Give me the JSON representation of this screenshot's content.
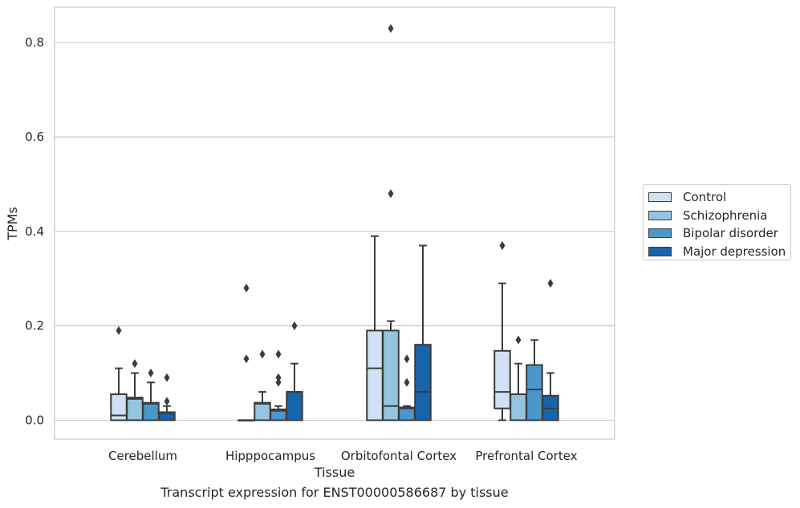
{
  "chart_data": {
    "type": "box",
    "xlabel": "Tissue",
    "ylabel": "TPMs",
    "ylim": [
      -0.04,
      0.875
    ],
    "yticks": [
      0.0,
      0.2,
      0.4,
      0.6,
      0.8
    ],
    "ytick_labels": [
      "0.0",
      "0.2",
      "0.4",
      "0.6",
      "0.8"
    ],
    "grid": "horizontal",
    "legend_position": "right",
    "categories": [
      "Cerebellum",
      "Hipppocampus",
      "Orbitofontal Cortex",
      "Prefrontal Cortex"
    ],
    "series": [
      {
        "name": "Control",
        "color": "#cfe1f2",
        "boxes": [
          {
            "q1": 0.0,
            "median": 0.01,
            "q3": 0.055,
            "whisker_low": 0.0,
            "whisker_high": 0.11,
            "outliers": [
              0.19
            ]
          },
          {
            "q1": 0.0,
            "median": 0.0,
            "q3": 0.0,
            "whisker_low": 0.0,
            "whisker_high": 0.0,
            "outliers": [
              0.13,
              0.28
            ]
          },
          {
            "q1": 0.0,
            "median": 0.11,
            "q3": 0.19,
            "whisker_low": 0.0,
            "whisker_high": 0.39,
            "outliers": []
          },
          {
            "q1": 0.025,
            "median": 0.06,
            "q3": 0.147,
            "whisker_low": 0.0,
            "whisker_high": 0.29,
            "outliers": [
              0.37
            ]
          }
        ]
      },
      {
        "name": "Schizophrenia",
        "color": "#94c4df",
        "boxes": [
          {
            "q1": 0.0,
            "median": 0.045,
            "q3": 0.048,
            "whisker_low": 0.0,
            "whisker_high": 0.1,
            "outliers": [
              0.12
            ]
          },
          {
            "q1": 0.0,
            "median": 0.035,
            "q3": 0.037,
            "whisker_low": 0.0,
            "whisker_high": 0.06,
            "outliers": [
              0.14
            ]
          },
          {
            "q1": 0.0,
            "median": 0.03,
            "q3": 0.19,
            "whisker_low": 0.0,
            "whisker_high": 0.21,
            "outliers": [
              0.48,
              0.83
            ]
          },
          {
            "q1": 0.0,
            "median": 0.055,
            "q3": 0.055,
            "whisker_low": 0.0,
            "whisker_high": 0.12,
            "outliers": [
              0.17
            ]
          }
        ]
      },
      {
        "name": "Bipolar disorder",
        "color": "#4a98c9",
        "boxes": [
          {
            "q1": 0.0,
            "median": 0.035,
            "q3": 0.037,
            "whisker_low": 0.0,
            "whisker_high": 0.08,
            "outliers": [
              0.1
            ]
          },
          {
            "q1": 0.0,
            "median": 0.02,
            "q3": 0.023,
            "whisker_low": 0.0,
            "whisker_high": 0.03,
            "outliers": [
              0.08,
              0.09,
              0.14
            ]
          },
          {
            "q1": 0.0,
            "median": 0.025,
            "q3": 0.027,
            "whisker_low": 0.0,
            "whisker_high": 0.03,
            "outliers": [
              0.08,
              0.13
            ]
          },
          {
            "q1": 0.0,
            "median": 0.065,
            "q3": 0.117,
            "whisker_low": 0.0,
            "whisker_high": 0.17,
            "outliers": []
          }
        ]
      },
      {
        "name": "Major depression",
        "color": "#1764ab",
        "boxes": [
          {
            "q1": 0.0,
            "median": 0.015,
            "q3": 0.017,
            "whisker_low": 0.0,
            "whisker_high": 0.03,
            "outliers": [
              0.04,
              0.09
            ]
          },
          {
            "q1": 0.0,
            "median": 0.06,
            "q3": 0.06,
            "whisker_low": 0.0,
            "whisker_high": 0.12,
            "outliers": [
              0.2
            ]
          },
          {
            "q1": 0.0,
            "median": 0.06,
            "q3": 0.16,
            "whisker_low": 0.0,
            "whisker_high": 0.37,
            "outliers": []
          },
          {
            "q1": 0.0,
            "median": 0.025,
            "q3": 0.052,
            "whisker_low": 0.0,
            "whisker_high": 0.1,
            "outliers": [
              0.29
            ]
          }
        ]
      }
    ]
  },
  "caption": "Transcript expression for ENST00000586687 by tissue"
}
